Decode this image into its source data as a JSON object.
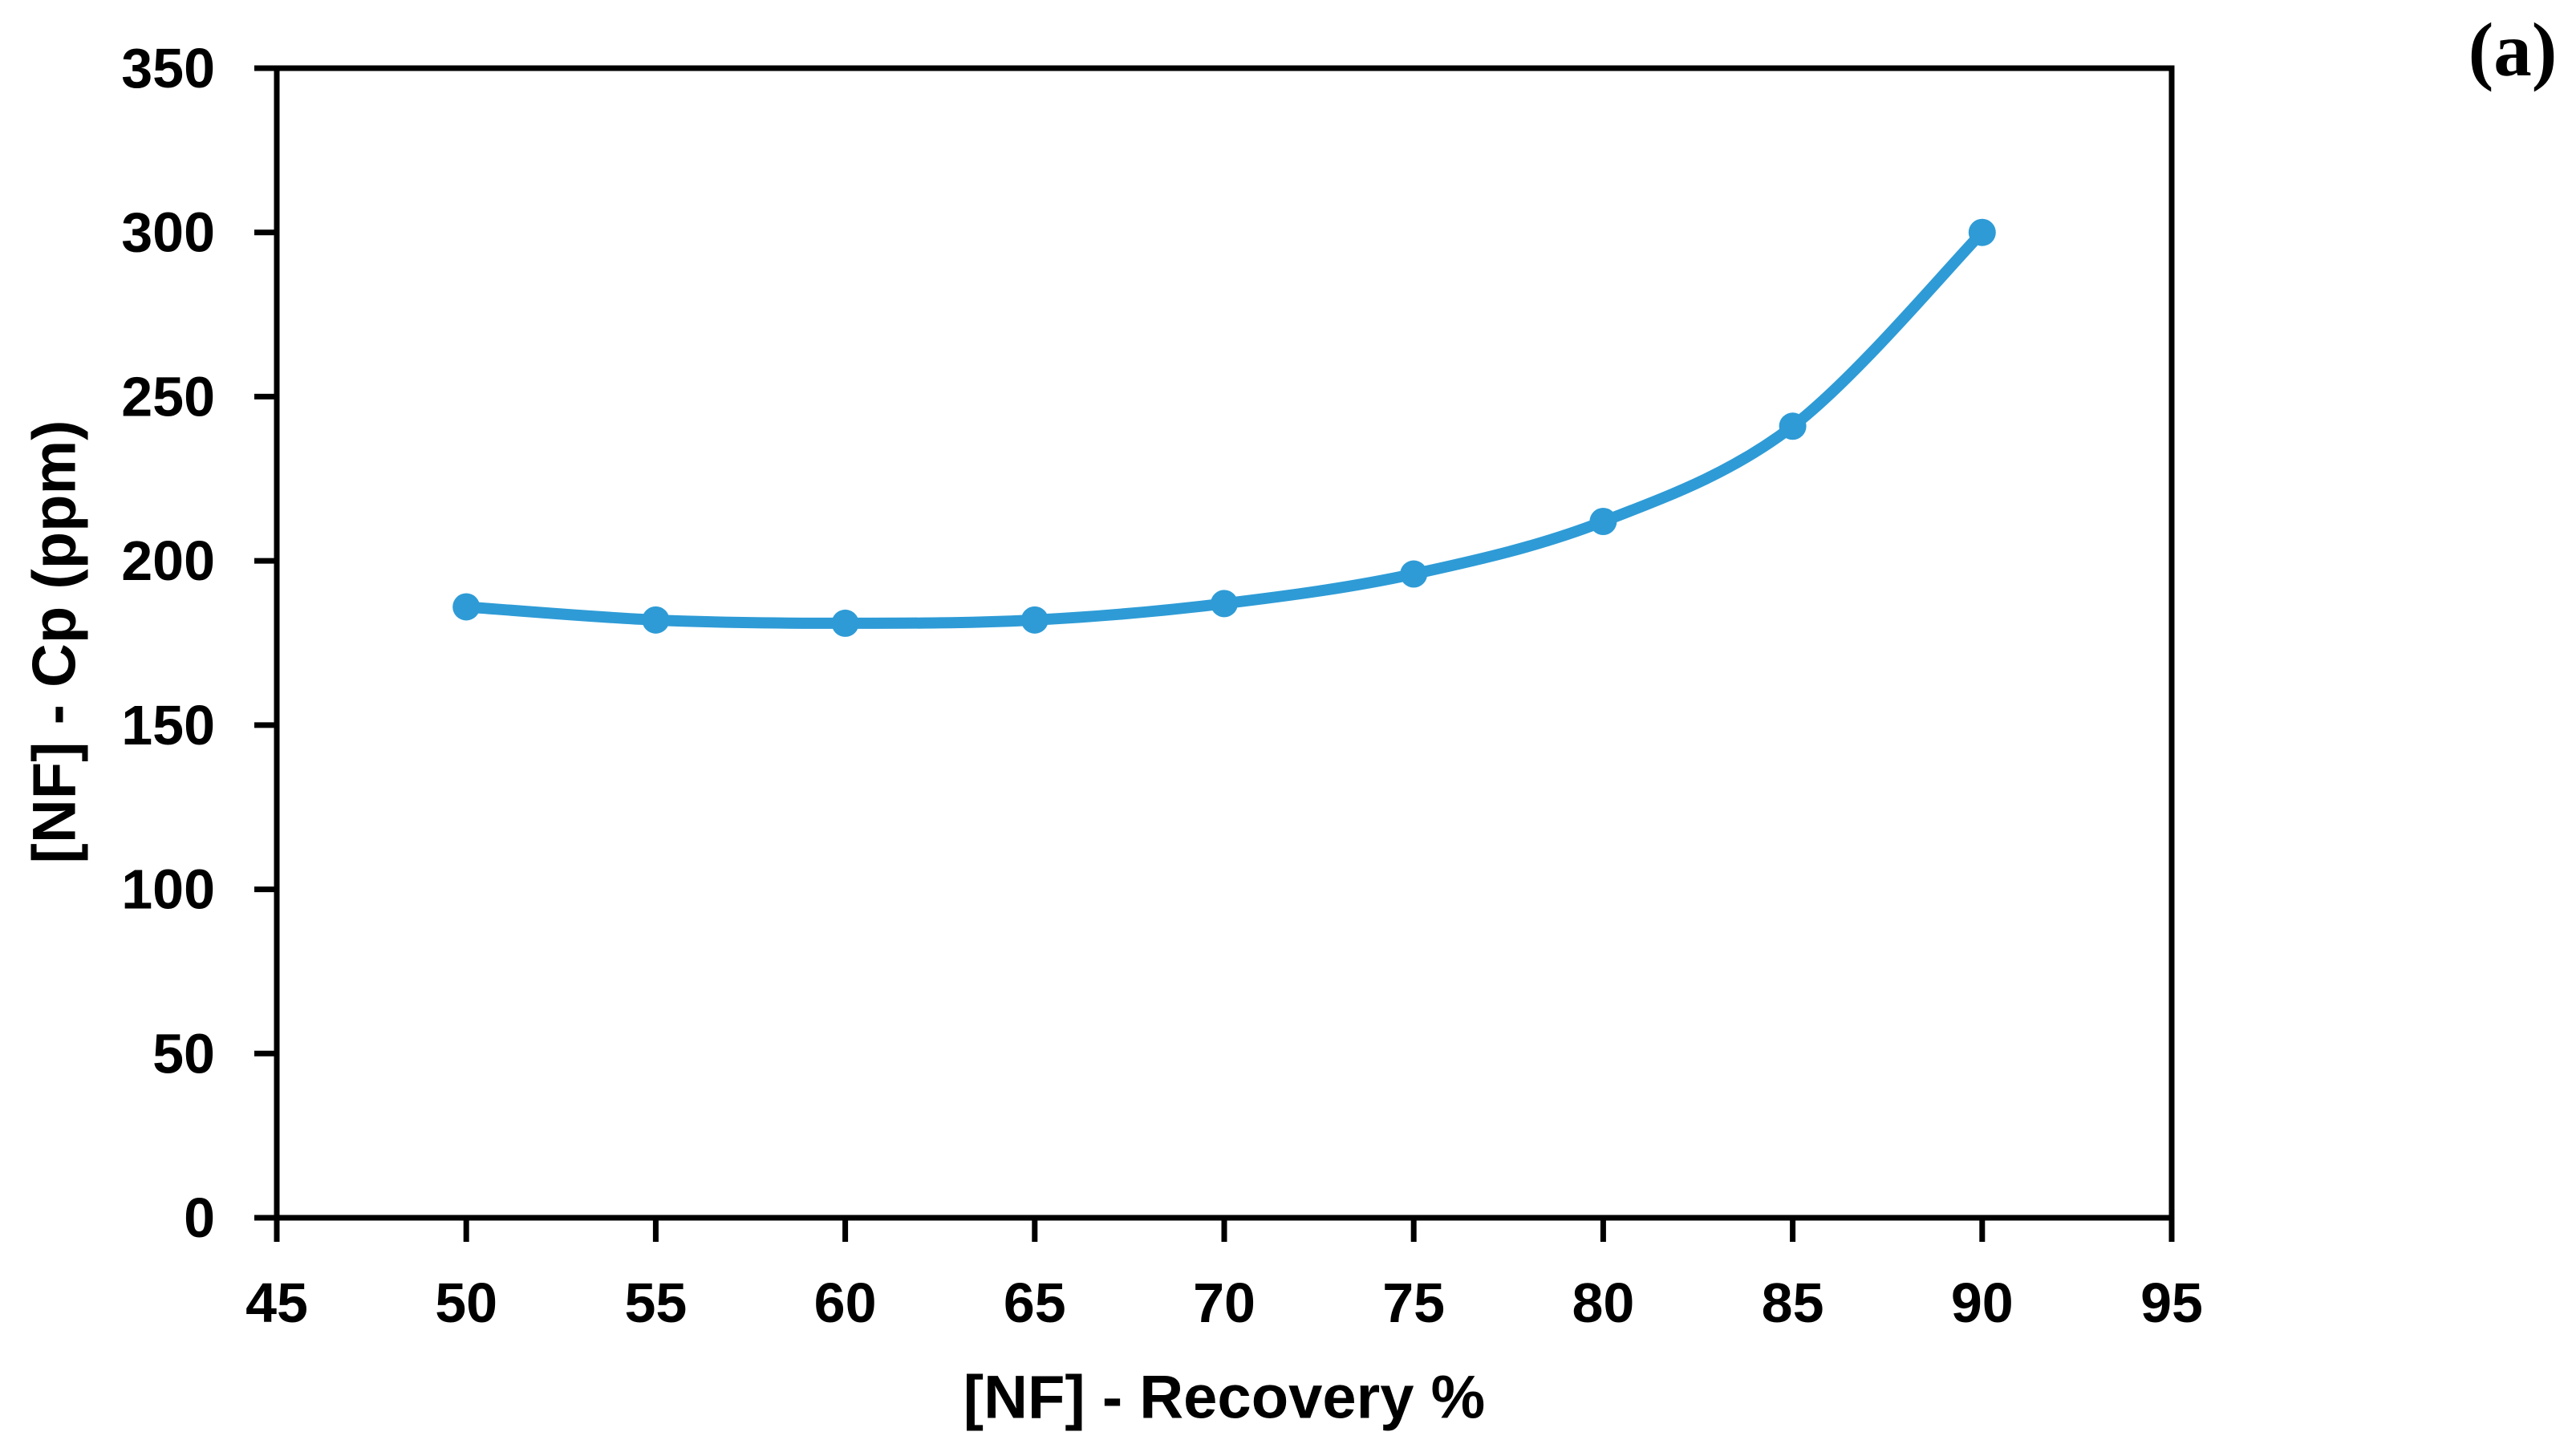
{
  "panel_label": "(a)",
  "chart_data": {
    "type": "line",
    "title": "",
    "panel_label": "(a)",
    "xlabel": "[NF] - Recovery %",
    "ylabel": "[NF] - Cp (ppm)",
    "x": [
      50,
      55,
      60,
      65,
      70,
      75,
      80,
      85,
      90
    ],
    "series": [
      {
        "name": "[NF] - Cp",
        "values": [
          186,
          182,
          181,
          182,
          187,
          196,
          212,
          241,
          300
        ]
      }
    ],
    "xlim": [
      45,
      95
    ],
    "ylim": [
      0,
      350
    ],
    "x_ticks": [
      45,
      50,
      55,
      60,
      65,
      70,
      75,
      80,
      85,
      90,
      95
    ],
    "y_ticks": [
      0,
      50,
      100,
      150,
      200,
      250,
      300,
      350
    ],
    "line_color": "#2E9BD6",
    "axis_color": "#000000",
    "marker": "circle",
    "smooth": true,
    "grid": false,
    "legend": "none"
  }
}
